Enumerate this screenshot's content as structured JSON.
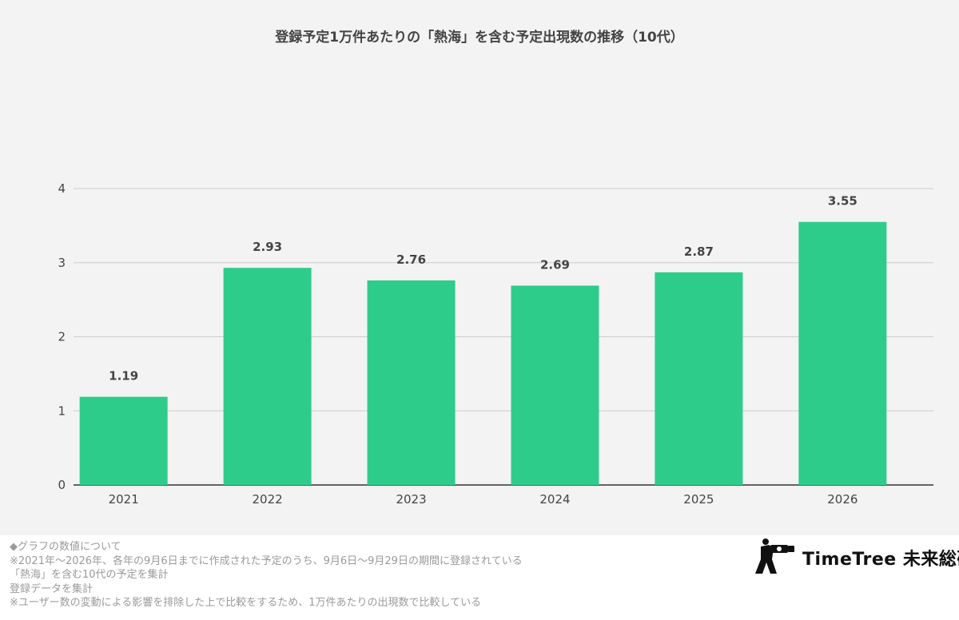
{
  "chart_data": {
    "type": "bar",
    "title": "登録予定1万件あたりの「熱海」を含む予定出現数の推移（10代）",
    "categories": [
      "2021",
      "2022",
      "2023",
      "2024",
      "2025",
      "2026"
    ],
    "values": [
      1.19,
      2.93,
      2.76,
      2.69,
      2.87,
      3.55
    ],
    "data_labels": [
      "1.19",
      "2.93",
      "2.76",
      "2.69",
      "2.87",
      "3.55"
    ],
    "yticks": [
      "0",
      "1",
      "2",
      "3",
      "4"
    ],
    "ylim": [
      0,
      4
    ],
    "xlabel": "",
    "ylabel": "",
    "grid": true,
    "bar_color": "#2ecc8a"
  },
  "notes": [
    "◆グラフの数値について",
    "※2021年〜2026年、各年の9月6日までに作成された予定のうち、9月6日〜9月29日の期間に登録されている",
    "「熱海」を含む10代の予定を集計",
    "登録データを集計",
    "※ユーザー数の変動による影響を排除した上で比較をするため、1万件あたりの出現数で比較している"
  ],
  "brand": {
    "name": "TimeTree 未来総研",
    "logo_icon": "photographer-silhouette-icon"
  }
}
